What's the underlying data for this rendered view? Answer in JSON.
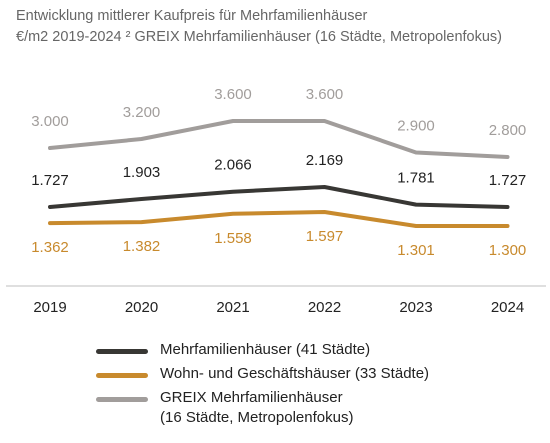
{
  "title": {
    "line1": "Entwicklung mittlerer Kaufpreis für Mehrfamilienhäuser",
    "line2": "€/m2 2019-2024 ² GREIX Mehrfamilienhäuser (16 Städte, Metropolenfokus)"
  },
  "chart_data": {
    "type": "line",
    "x": [
      "2019",
      "2020",
      "2021",
      "2022",
      "2023",
      "2024"
    ],
    "series": [
      {
        "name": "GREIX Mehrfamilienhäuser\n(16 Städte, Metropolenfokus)",
        "values": [
          3000,
          3200,
          3600,
          3600,
          2900,
          2800
        ],
        "labels": [
          "3.000",
          "3.200",
          "3.600",
          "3.600",
          "2.900",
          "2.800"
        ],
        "color": "#a19d9b"
      },
      {
        "name": "Mehrfamilienhäuser (41 Städte)",
        "values": [
          1727,
          1903,
          2066,
          2169,
          1781,
          1727
        ],
        "labels": [
          "1.727",
          "1.903",
          "2.066",
          "2.169",
          "1.781",
          "1.727"
        ],
        "color": "#383734"
      },
      {
        "name": "Wohn- und Geschäftshäuser (33 Städte)",
        "values": [
          1362,
          1382,
          1558,
          1597,
          1301,
          1300
        ],
        "labels": [
          "1.362",
          "1.382",
          "1.558",
          "1.597",
          "1.301",
          "1.300"
        ],
        "color": "#c88a2d"
      }
    ],
    "legend_order": [
      1,
      2,
      0
    ],
    "legend_position": "bottom",
    "label_colors": {
      "gray": "#a19d9b",
      "dark": "#222222",
      "orange": "#c88a2d"
    },
    "grid": false
  }
}
